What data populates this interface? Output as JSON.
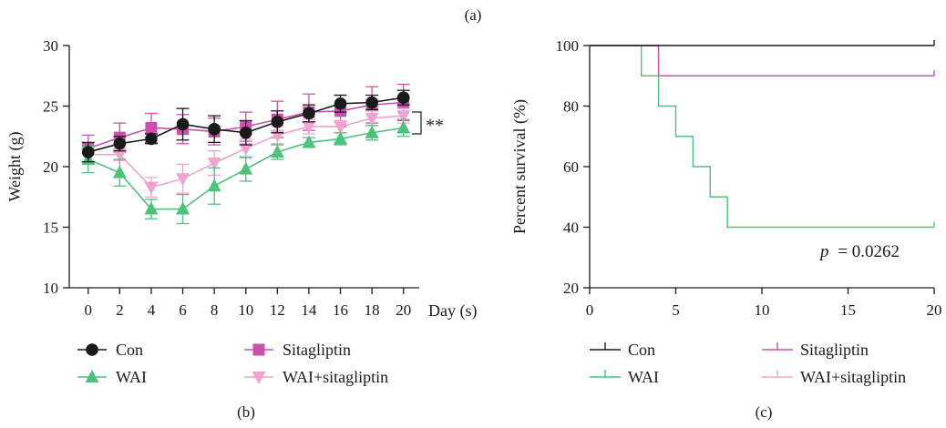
{
  "figure": {
    "top_label": "(a)",
    "panel_b_label": "(b)",
    "panel_c_label": "(c)"
  },
  "colors": {
    "con": "#1a1a1a",
    "sitagliptin": "#cc4fae",
    "wai": "#4cc27d",
    "wai_sitagliptin": "#f0a3cf"
  },
  "chart_data": [
    {
      "type": "line",
      "panel": "(b)",
      "title": "",
      "xlabel": "Day (s)",
      "ylabel": "Weight (g)",
      "x": [
        0,
        2,
        4,
        6,
        8,
        10,
        12,
        14,
        16,
        18,
        20
      ],
      "xlim": [
        -1.2,
        21
      ],
      "ylim": [
        10,
        30
      ],
      "xticks": [
        "0",
        "2",
        "4",
        "6",
        "8",
        "10",
        "12",
        "14",
        "16",
        "18",
        "20"
      ],
      "yticks": [
        "10",
        "15",
        "20",
        "25",
        "30"
      ],
      "annotation": "**",
      "series": [
        {
          "name": "Con",
          "marker": "circle",
          "color": "#1a1a1a",
          "values": [
            21.2,
            21.9,
            22.3,
            23.5,
            23.1,
            22.8,
            23.7,
            24.4,
            25.2,
            25.3,
            25.7
          ],
          "errors": [
            0.8,
            0.6,
            0.4,
            1.3,
            1.1,
            1.0,
            0.9,
            0.7,
            0.7,
            0.6,
            0.6
          ]
        },
        {
          "name": "Sitagliptin",
          "marker": "square",
          "color": "#cc4fae",
          "values": [
            21.5,
            22.4,
            23.2,
            23.1,
            22.9,
            23.3,
            23.9,
            24.5,
            24.6,
            25.1,
            25.3
          ],
          "errors": [
            1.1,
            1.2,
            1.2,
            1.2,
            1.1,
            1.2,
            1.5,
            1.5,
            1.3,
            1.5,
            1.5
          ]
        },
        {
          "name": "WAI",
          "marker": "triangle-up",
          "color": "#4cc27d",
          "values": [
            20.6,
            19.5,
            16.5,
            16.5,
            18.4,
            19.8,
            21.2,
            22.0,
            22.3,
            22.8,
            23.2
          ],
          "errors": [
            1.1,
            1.1,
            0.8,
            1.2,
            1.5,
            1.0,
            0.6,
            0.4,
            0.5,
            0.6,
            0.7
          ]
        },
        {
          "name": "WAI+sitagliptin",
          "marker": "triangle-down",
          "color": "#f0a3cf",
          "values": [
            21.0,
            21.0,
            18.3,
            19.0,
            20.3,
            21.5,
            22.6,
            23.3,
            23.3,
            24.0,
            24.2
          ],
          "errors": [
            0.6,
            0.5,
            0.8,
            1.2,
            1.0,
            0.8,
            0.7,
            0.6,
            0.5,
            0.6,
            0.6
          ]
        }
      ]
    },
    {
      "type": "line",
      "panel": "(c)",
      "title": "",
      "xlabel": "",
      "ylabel": "Percent survival (%)",
      "xlim": [
        0,
        20
      ],
      "ylim": [
        20,
        100
      ],
      "xticks": [
        "0",
        "5",
        "10",
        "15",
        "20"
      ],
      "yticks": [
        "20",
        "40",
        "60",
        "80",
        "100"
      ],
      "annotation_p_symbol": "p",
      "annotation_p_value": "= 0.0262",
      "series": [
        {
          "name": "Con",
          "color": "#1a1a1a",
          "steps": [
            [
              0,
              100
            ],
            [
              20,
              100
            ]
          ]
        },
        {
          "name": "Sitagliptin",
          "color": "#cc4fae",
          "steps": [
            [
              0,
              100
            ],
            [
              4,
              100
            ],
            [
              4,
              90
            ],
            [
              20,
              90
            ]
          ]
        },
        {
          "name": "WAI",
          "color": "#4cc27d",
          "steps": [
            [
              0,
              100
            ],
            [
              3,
              100
            ],
            [
              3,
              90
            ],
            [
              4,
              90
            ],
            [
              4,
              80
            ],
            [
              5,
              80
            ],
            [
              5,
              70
            ],
            [
              6,
              70
            ],
            [
              6,
              60
            ],
            [
              7,
              60
            ],
            [
              7,
              50
            ],
            [
              8,
              50
            ],
            [
              8,
              40
            ],
            [
              20,
              40
            ]
          ]
        },
        {
          "name": "WAI+sitagliptin",
          "color": "#f0a3cf",
          "steps": [
            [
              0,
              100
            ],
            [
              4,
              100
            ],
            [
              4,
              90
            ],
            [
              20,
              90
            ]
          ]
        }
      ]
    }
  ]
}
